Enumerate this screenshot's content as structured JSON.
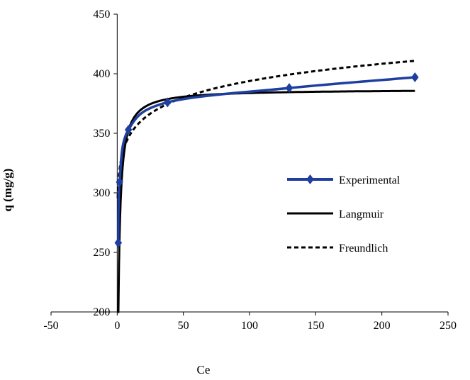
{
  "chart_data": {
    "type": "scatter",
    "xlabel": "Ce",
    "ylabel": "q (mg/g)",
    "xlim": [
      -50,
      250
    ],
    "ylim": [
      200,
      450
    ],
    "xticks": [
      -50,
      0,
      50,
      100,
      150,
      200,
      250
    ],
    "yticks": [
      200,
      250,
      300,
      350,
      400,
      450
    ],
    "grid": false,
    "legend_position": "right",
    "series": [
      {
        "name": "Experimental",
        "style": "line-markers",
        "color": "#1f3fa0",
        "marker": "diamond",
        "points": [
          [
            0.8,
            258
          ],
          [
            1.8,
            309
          ],
          [
            8.5,
            353
          ],
          [
            38,
            376
          ],
          [
            130,
            388
          ],
          [
            225,
            397
          ]
        ]
      },
      {
        "name": "Langmuir",
        "style": "solid",
        "color": "#000000",
        "model": "langmuir",
        "qmax": 387,
        "K": 1.2
      },
      {
        "name": "Freundlich",
        "style": "dashed",
        "color": "#000000",
        "model": "freundlich",
        "Kf": 310,
        "n_inv": 0.052
      }
    ]
  }
}
